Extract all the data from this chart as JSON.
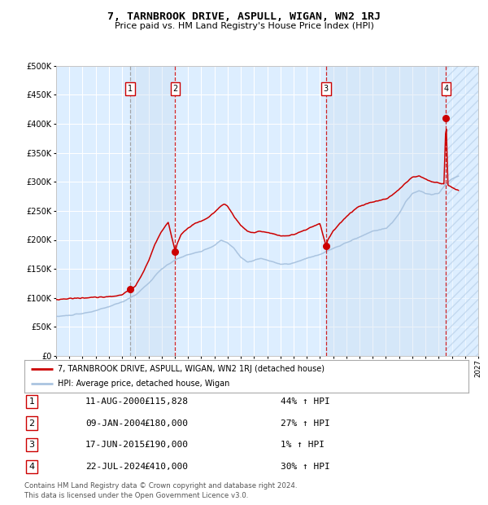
{
  "title": "7, TARNBROOK DRIVE, ASPULL, WIGAN, WN2 1RJ",
  "subtitle": "Price paid vs. HM Land Registry's House Price Index (HPI)",
  "legend_line1": "7, TARNBROOK DRIVE, ASPULL, WIGAN, WN2 1RJ (detached house)",
  "legend_line2": "HPI: Average price, detached house, Wigan",
  "footer1": "Contains HM Land Registry data © Crown copyright and database right 2024.",
  "footer2": "This data is licensed under the Open Government Licence v3.0.",
  "hpi_color": "#aac4e0",
  "sale_color": "#cc0000",
  "background_plot": "#ddeeff",
  "background_fig": "#ffffff",
  "grid_color": "#ffffff",
  "xmin": 1995.0,
  "xmax": 2027.0,
  "ymin": 0,
  "ymax": 500000,
  "yticks": [
    0,
    50000,
    100000,
    150000,
    200000,
    250000,
    300000,
    350000,
    400000,
    450000,
    500000
  ],
  "ytick_labels": [
    "£0",
    "£50K",
    "£100K",
    "£150K",
    "£200K",
    "£250K",
    "£300K",
    "£350K",
    "£400K",
    "£450K",
    "£500K"
  ],
  "xticks": [
    1995,
    1996,
    1997,
    1998,
    1999,
    2000,
    2001,
    2002,
    2003,
    2004,
    2005,
    2006,
    2007,
    2008,
    2009,
    2010,
    2011,
    2012,
    2013,
    2014,
    2015,
    2016,
    2017,
    2018,
    2019,
    2020,
    2021,
    2022,
    2023,
    2024,
    2025,
    2026,
    2027
  ],
  "sales": [
    {
      "num": 1,
      "date": "11-AUG-2000",
      "price": 115828,
      "pct": "44%",
      "x": 2000.61
    },
    {
      "num": 2,
      "date": "09-JAN-2004",
      "price": 180000,
      "pct": "27%",
      "x": 2004.03
    },
    {
      "num": 3,
      "date": "17-JUN-2015",
      "price": 190000,
      "pct": "1%",
      "x": 2015.46
    },
    {
      "num": 4,
      "date": "22-JUL-2024",
      "price": 410000,
      "pct": "30%",
      "x": 2024.56
    }
  ],
  "table_rows": [
    [
      "1",
      "11-AUG-2000",
      "£115,828",
      "44% ↑ HPI"
    ],
    [
      "2",
      "09-JAN-2004",
      "£180,000",
      "27% ↑ HPI"
    ],
    [
      "3",
      "17-JUN-2015",
      "£190,000",
      "1% ↑ HPI"
    ],
    [
      "4",
      "22-JUL-2024",
      "£410,000",
      "30% ↑ HPI"
    ]
  ]
}
